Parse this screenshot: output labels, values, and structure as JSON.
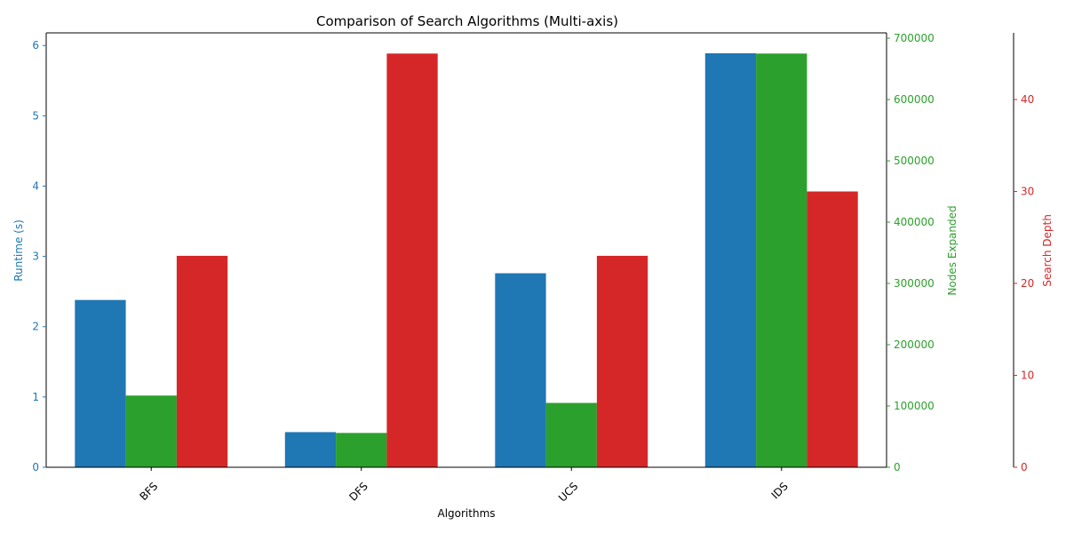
{
  "chart_data": {
    "type": "bar",
    "title": "Comparison of Search Algorithms (Multi-axis)",
    "xlabel": "Algorithms",
    "categories": [
      "BFS",
      "DFS",
      "UCS",
      "IDS"
    ],
    "series": [
      {
        "name": "Runtime (s)",
        "axis_label": "Runtime (s)",
        "color": "#1f77b4",
        "values": [
          2.38,
          0.5,
          2.76,
          5.89
        ],
        "ylim": [
          0,
          6.18
        ],
        "ticks": [
          0,
          1,
          2,
          3,
          4,
          5,
          6
        ]
      },
      {
        "name": "Nodes Expanded",
        "axis_label": "Nodes Expanded",
        "color": "#2ca02c",
        "values": [
          117000,
          56000,
          105000,
          675000
        ],
        "ylim": [
          0,
          708750
        ],
        "ticks": [
          0,
          100000,
          200000,
          300000,
          400000,
          500000,
          600000,
          700000
        ]
      },
      {
        "name": "Search Depth",
        "axis_label": "Search Depth",
        "color": "#d62728",
        "values": [
          23,
          45,
          23,
          30
        ],
        "ylim": [
          0,
          47.25
        ],
        "ticks": [
          0,
          10,
          20,
          30,
          40
        ]
      }
    ],
    "grid": false,
    "legend": "none"
  }
}
